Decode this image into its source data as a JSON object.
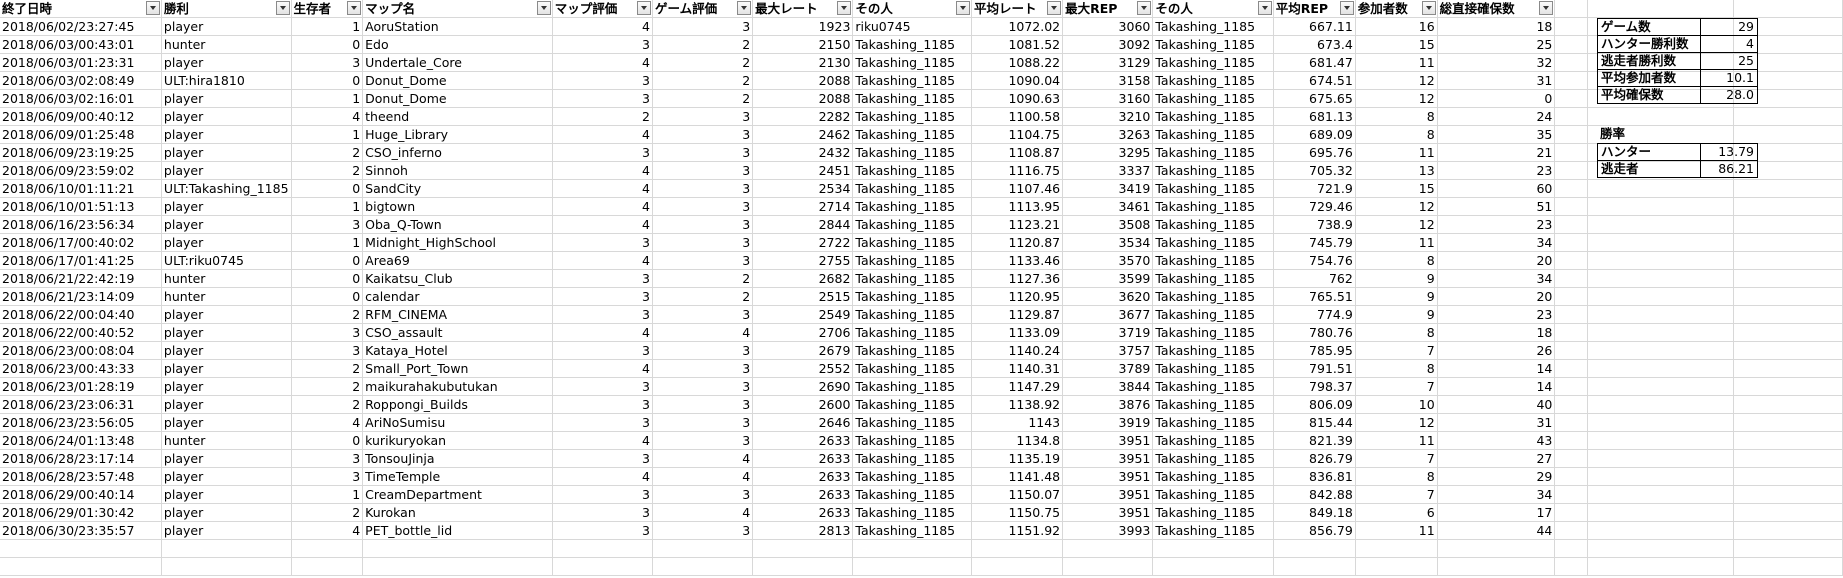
{
  "headers": [
    "終了日時",
    "勝利",
    "生存者",
    "マップ名",
    "マップ評価",
    "ゲーム評価",
    "最大レート",
    "その人",
    "平均レート",
    "最大REP",
    "その人",
    "平均REP",
    "参加者数",
    "総直接確保数"
  ],
  "rows": [
    [
      "2018/06/02/23:27:45",
      "player",
      "1",
      "AoruStation",
      "4",
      "3",
      "1923",
      "riku0745",
      "1072.02",
      "3060",
      "Takashing_1185",
      "667.11",
      "16",
      "18"
    ],
    [
      "2018/06/03/00:43:01",
      "hunter",
      "0",
      "Edo",
      "3",
      "2",
      "2150",
      "Takashing_1185",
      "1081.52",
      "3092",
      "Takashing_1185",
      "673.4",
      "15",
      "25"
    ],
    [
      "2018/06/03/01:23:31",
      "player",
      "3",
      "Undertale_Core",
      "4",
      "2",
      "2130",
      "Takashing_1185",
      "1088.22",
      "3129",
      "Takashing_1185",
      "681.47",
      "11",
      "32"
    ],
    [
      "2018/06/03/02:08:49",
      "ULT:hira1810",
      "0",
      "Donut_Dome",
      "3",
      "2",
      "2088",
      "Takashing_1185",
      "1090.04",
      "3158",
      "Takashing_1185",
      "674.51",
      "12",
      "31"
    ],
    [
      "2018/06/03/02:16:01",
      "player",
      "1",
      "Donut_Dome",
      "3",
      "2",
      "2088",
      "Takashing_1185",
      "1090.63",
      "3160",
      "Takashing_1185",
      "675.65",
      "12",
      "0"
    ],
    [
      "2018/06/09/00:40:12",
      "player",
      "4",
      "theend",
      "2",
      "3",
      "2282",
      "Takashing_1185",
      "1100.58",
      "3210",
      "Takashing_1185",
      "681.13",
      "8",
      "24"
    ],
    [
      "2018/06/09/01:25:48",
      "player",
      "1",
      "Huge_Library",
      "4",
      "3",
      "2462",
      "Takashing_1185",
      "1104.75",
      "3263",
      "Takashing_1185",
      "689.09",
      "8",
      "35"
    ],
    [
      "2018/06/09/23:19:25",
      "player",
      "2",
      "CSO_inferno",
      "3",
      "3",
      "2432",
      "Takashing_1185",
      "1108.87",
      "3295",
      "Takashing_1185",
      "695.76",
      "11",
      "21"
    ],
    [
      "2018/06/09/23:59:02",
      "player",
      "2",
      "Sinnoh",
      "4",
      "3",
      "2451",
      "Takashing_1185",
      "1116.75",
      "3337",
      "Takashing_1185",
      "705.32",
      "13",
      "23"
    ],
    [
      "2018/06/10/01:11:21",
      "ULT:Takashing_1185",
      "0",
      "SandCity",
      "4",
      "3",
      "2534",
      "Takashing_1185",
      "1107.46",
      "3419",
      "Takashing_1185",
      "721.9",
      "15",
      "60"
    ],
    [
      "2018/06/10/01:51:13",
      "player",
      "1",
      "bigtown",
      "4",
      "3",
      "2714",
      "Takashing_1185",
      "1113.95",
      "3461",
      "Takashing_1185",
      "729.46",
      "12",
      "51"
    ],
    [
      "2018/06/16/23:56:34",
      "player",
      "3",
      "Oba_Q-Town",
      "4",
      "3",
      "2844",
      "Takashing_1185",
      "1123.21",
      "3508",
      "Takashing_1185",
      "738.9",
      "12",
      "23"
    ],
    [
      "2018/06/17/00:40:02",
      "player",
      "1",
      "Midnight_HighSchool",
      "3",
      "3",
      "2722",
      "Takashing_1185",
      "1120.87",
      "3534",
      "Takashing_1185",
      "745.79",
      "11",
      "34"
    ],
    [
      "2018/06/17/01:41:25",
      "ULT:riku0745",
      "0",
      "Area69",
      "4",
      "3",
      "2755",
      "Takashing_1185",
      "1133.46",
      "3570",
      "Takashing_1185",
      "754.76",
      "8",
      "20"
    ],
    [
      "2018/06/21/22:42:19",
      "hunter",
      "0",
      "Kaikatsu_Club",
      "3",
      "2",
      "2682",
      "Takashing_1185",
      "1127.36",
      "3599",
      "Takashing_1185",
      "762",
      "9",
      "34"
    ],
    [
      "2018/06/21/23:14:09",
      "hunter",
      "0",
      "calendar",
      "3",
      "2",
      "2515",
      "Takashing_1185",
      "1120.95",
      "3620",
      "Takashing_1185",
      "765.51",
      "9",
      "20"
    ],
    [
      "2018/06/22/00:04:40",
      "player",
      "2",
      "RFM_CINEMA",
      "3",
      "3",
      "2549",
      "Takashing_1185",
      "1129.87",
      "3677",
      "Takashing_1185",
      "774.9",
      "9",
      "23"
    ],
    [
      "2018/06/22/00:40:52",
      "player",
      "3",
      "CSO_assault",
      "4",
      "4",
      "2706",
      "Takashing_1185",
      "1133.09",
      "3719",
      "Takashing_1185",
      "780.76",
      "8",
      "18"
    ],
    [
      "2018/06/23/00:08:04",
      "player",
      "3",
      "Kataya_Hotel",
      "3",
      "3",
      "2679",
      "Takashing_1185",
      "1140.24",
      "3757",
      "Takashing_1185",
      "785.95",
      "7",
      "26"
    ],
    [
      "2018/06/23/00:43:33",
      "player",
      "2",
      "Small_Port_Town",
      "4",
      "3",
      "2552",
      "Takashing_1185",
      "1140.31",
      "3789",
      "Takashing_1185",
      "791.51",
      "8",
      "14"
    ],
    [
      "2018/06/23/01:28:19",
      "player",
      "2",
      "maikurahakubutukan",
      "3",
      "3",
      "2690",
      "Takashing_1185",
      "1147.29",
      "3844",
      "Takashing_1185",
      "798.37",
      "7",
      "14"
    ],
    [
      "2018/06/23/23:06:31",
      "player",
      "2",
      "Roppongi_Builds",
      "3",
      "3",
      "2600",
      "Takashing_1185",
      "1138.92",
      "3876",
      "Takashing_1185",
      "806.09",
      "10",
      "40"
    ],
    [
      "2018/06/23/23:56:05",
      "player",
      "4",
      "AriNoSumisu",
      "3",
      "3",
      "2646",
      "Takashing_1185",
      "1143",
      "3919",
      "Takashing_1185",
      "815.44",
      "12",
      "31"
    ],
    [
      "2018/06/24/01:13:48",
      "hunter",
      "0",
      "kurikuryokan",
      "4",
      "3",
      "2633",
      "Takashing_1185",
      "1134.8",
      "3951",
      "Takashing_1185",
      "821.39",
      "11",
      "43"
    ],
    [
      "2018/06/28/23:17:14",
      "player",
      "3",
      "TonsouJinja",
      "3",
      "4",
      "2633",
      "Takashing_1185",
      "1135.19",
      "3951",
      "Takashing_1185",
      "826.79",
      "7",
      "27"
    ],
    [
      "2018/06/28/23:57:48",
      "player",
      "3",
      "TimeTemple",
      "4",
      "4",
      "2633",
      "Takashing_1185",
      "1141.48",
      "3951",
      "Takashing_1185",
      "836.81",
      "8",
      "29"
    ],
    [
      "2018/06/29/00:40:14",
      "player",
      "1",
      "CreamDepartment",
      "3",
      "3",
      "2633",
      "Takashing_1185",
      "1150.07",
      "3951",
      "Takashing_1185",
      "842.88",
      "7",
      "34"
    ],
    [
      "2018/06/29/01:30:42",
      "player",
      "2",
      "Kurokan",
      "3",
      "4",
      "2633",
      "Takashing_1185",
      "1150.75",
      "3951",
      "Takashing_1185",
      "849.18",
      "6",
      "17"
    ],
    [
      "2018/06/30/23:35:57",
      "player",
      "4",
      "PET_bottle_lid",
      "3",
      "3",
      "2813",
      "Takashing_1185",
      "1151.92",
      "3993",
      "Takashing_1185",
      "856.79",
      "11",
      "44"
    ]
  ],
  "summary": [
    {
      "label": "ゲーム数",
      "value": "29"
    },
    {
      "label": "ハンター勝利数",
      "value": "4"
    },
    {
      "label": "逃走者勝利数",
      "value": "25"
    },
    {
      "label": "平均参加者数",
      "value": "10.1"
    },
    {
      "label": "平均確保数",
      "value": "28.0"
    }
  ],
  "winrate": {
    "title": "勝率",
    "items": [
      {
        "label": "ハンター",
        "value": "13.79"
      },
      {
        "label": "逃走者",
        "value": "86.21"
      }
    ]
  }
}
